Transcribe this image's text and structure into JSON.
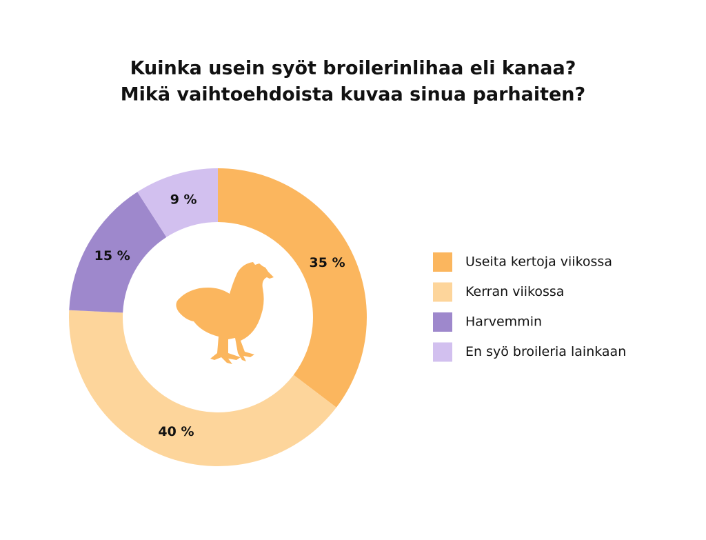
{
  "chart_data": {
    "type": "donut",
    "title": [
      "Kuinka usein syöt broilerinlihaa eli kanaa?",
      "Mikä vaihtoehdoista kuvaa sinua parhaiten?"
    ],
    "categories": [
      "Useita kertoja viikossa",
      "Kerran viikossa",
      "Harvemmin",
      "En syö broileria lainkaan"
    ],
    "values": [
      35,
      40,
      15,
      9
    ],
    "value_labels": [
      "35 %",
      "40 %",
      "15 %",
      "9 %"
    ],
    "colors": [
      "#fbb65e",
      "#fdd59b",
      "#9e88cc",
      "#d2c0ef"
    ],
    "legend": "right"
  }
}
